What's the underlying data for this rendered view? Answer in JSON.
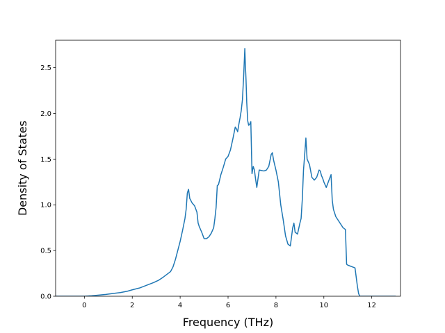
{
  "chart_data": {
    "type": "line",
    "title": "",
    "xlabel": "Frequency (THz)",
    "ylabel": "Density of States",
    "xlim": [
      -1.2,
      13.2
    ],
    "ylim": [
      0,
      2.8
    ],
    "xticks": [
      0,
      2,
      4,
      6,
      8,
      10,
      12
    ],
    "xtick_labels": [
      "0",
      "2",
      "4",
      "6",
      "8",
      "10",
      "12"
    ],
    "yticks": [
      0.0,
      0.5,
      1.0,
      1.5,
      2.0,
      2.5
    ],
    "ytick_labels": [
      "0.0",
      "0.5",
      "1.0",
      "1.5",
      "2.0",
      "2.5"
    ],
    "grid": false,
    "line_color": "#1f77b4",
    "series": [
      {
        "x": [
          -1.2,
          -0.5,
          0.0,
          0.3,
          0.6,
          0.9,
          1.2,
          1.5,
          1.8,
          2.0,
          2.3,
          2.6,
          2.9,
          3.1,
          3.3,
          3.5,
          3.6,
          3.7,
          3.8,
          3.9,
          4.0,
          4.1,
          4.2,
          4.25,
          4.3,
          4.35,
          4.4,
          4.5,
          4.6,
          4.7,
          4.75,
          4.8,
          4.9,
          5.0,
          5.1,
          5.2,
          5.3,
          5.4,
          5.45,
          5.5,
          5.55,
          5.6,
          5.7,
          5.8,
          5.9,
          6.0,
          6.1,
          6.2,
          6.3,
          6.35,
          6.4,
          6.45,
          6.5,
          6.55,
          6.6,
          6.65,
          6.7,
          6.72,
          6.75,
          6.78,
          6.82,
          6.86,
          6.9,
          6.95,
          7.0,
          7.05,
          7.1,
          7.15,
          7.2,
          7.3,
          7.5,
          7.6,
          7.7,
          7.8,
          7.85,
          7.9,
          8.0,
          8.1,
          8.2,
          8.3,
          8.4,
          8.5,
          8.6,
          8.7,
          8.75,
          8.8,
          8.9,
          9.0,
          9.05,
          9.1,
          9.15,
          9.2,
          9.25,
          9.3,
          9.4,
          9.5,
          9.6,
          9.7,
          9.8,
          9.85,
          9.9,
          9.95,
          10.0,
          10.1,
          10.2,
          10.3,
          10.35,
          10.4,
          10.5,
          10.6,
          10.7,
          10.8,
          10.9,
          10.95,
          11.0,
          11.1,
          11.2,
          11.3,
          11.4,
          11.45,
          11.5,
          12.0,
          12.5,
          13.0
        ],
        "y": [
          0.0,
          0.0,
          0.0,
          0.005,
          0.012,
          0.02,
          0.03,
          0.04,
          0.055,
          0.07,
          0.09,
          0.12,
          0.15,
          0.175,
          0.21,
          0.25,
          0.27,
          0.32,
          0.4,
          0.5,
          0.6,
          0.72,
          0.85,
          0.95,
          1.13,
          1.17,
          1.07,
          1.02,
          0.99,
          0.92,
          0.8,
          0.76,
          0.7,
          0.63,
          0.63,
          0.65,
          0.69,
          0.75,
          0.85,
          0.97,
          1.21,
          1.22,
          1.33,
          1.41,
          1.5,
          1.53,
          1.6,
          1.72,
          1.85,
          1.83,
          1.8,
          1.88,
          1.95,
          2.03,
          2.15,
          2.4,
          2.71,
          2.55,
          2.37,
          2.12,
          1.92,
          1.87,
          1.88,
          1.91,
          1.34,
          1.42,
          1.38,
          1.28,
          1.19,
          1.38,
          1.37,
          1.38,
          1.42,
          1.55,
          1.57,
          1.49,
          1.38,
          1.25,
          1.0,
          0.84,
          0.66,
          0.57,
          0.55,
          0.75,
          0.8,
          0.7,
          0.68,
          0.8,
          0.85,
          1.06,
          1.38,
          1.55,
          1.73,
          1.5,
          1.44,
          1.3,
          1.27,
          1.3,
          1.38,
          1.37,
          1.32,
          1.29,
          1.25,
          1.19,
          1.26,
          1.33,
          1.05,
          0.95,
          0.87,
          0.83,
          0.79,
          0.75,
          0.73,
          0.35,
          0.34,
          0.33,
          0.32,
          0.31,
          0.11,
          0.03,
          0.0,
          0.0,
          0.0,
          0.0
        ]
      }
    ]
  }
}
